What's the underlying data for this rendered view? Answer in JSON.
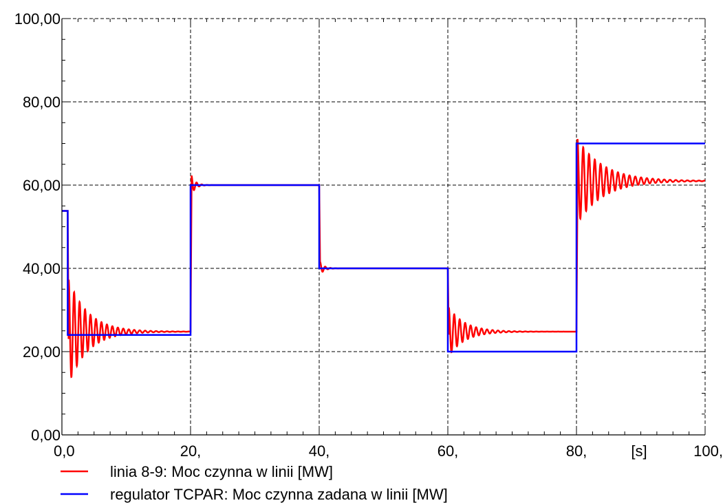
{
  "chart_data": {
    "type": "line",
    "title": "",
    "xlabel": "[s]",
    "ylabel": "",
    "xlim": [
      0,
      100
    ],
    "ylim": [
      0,
      100
    ],
    "grid": true,
    "x_ticks": [
      {
        "value": 0,
        "label": "0,0"
      },
      {
        "value": 20,
        "label": "20,"
      },
      {
        "value": 40,
        "label": "40,"
      },
      {
        "value": 60,
        "label": "60,"
      },
      {
        "value": 80,
        "label": "80,"
      },
      {
        "value": 100,
        "label": "100,"
      }
    ],
    "y_ticks": [
      {
        "value": 0,
        "label": "0,00"
      },
      {
        "value": 20,
        "label": "20,00"
      },
      {
        "value": 40,
        "label": "40,00"
      },
      {
        "value": 60,
        "label": "60,00"
      },
      {
        "value": 80,
        "label": "80,00"
      },
      {
        "value": 100,
        "label": "100,00"
      }
    ],
    "legend_position": "bottom",
    "series": [
      {
        "name": "linia 8-9: Moc czynna w linii [MW]",
        "color": "#ff0000",
        "kind": "response",
        "initial": 53.8,
        "segments": [
          {
            "t0": 0.9,
            "t1": 20,
            "final": 24.8,
            "peak": 38.0,
            "tau": 3.0,
            "period": 0.85
          },
          {
            "t0": 20,
            "t1": 40,
            "final": 60.0,
            "peak": 63.0,
            "tau": 0.6,
            "period": 0.8
          },
          {
            "t0": 40,
            "t1": 60,
            "final": 40.0,
            "peak": 42.0,
            "tau": 0.6,
            "period": 0.8
          },
          {
            "t0": 60,
            "t1": 80,
            "final": 24.8,
            "peak": 31.0,
            "tau": 2.5,
            "period": 0.85
          },
          {
            "t0": 80,
            "t1": 100,
            "final": 61.0,
            "peak": 71.5,
            "tau": 4.0,
            "period": 0.9
          }
        ]
      },
      {
        "name": "regulator TCPAR: Moc czynna zadana w linii [MW]",
        "color": "#0000ff",
        "kind": "step",
        "x": [
          0,
          0.9,
          0.9,
          20,
          20,
          40,
          40,
          60,
          60,
          80,
          80,
          100
        ],
        "y": [
          53.8,
          53.8,
          24.0,
          24.0,
          60.0,
          60.0,
          40.0,
          40.0,
          20.0,
          20.0,
          70.0,
          70.0
        ]
      }
    ]
  },
  "legend": {
    "item_red": "linia 8-9: Moc czynna w linii [MW]",
    "item_blue": "regulator TCPAR: Moc czynna zadana w linii [MW]"
  }
}
